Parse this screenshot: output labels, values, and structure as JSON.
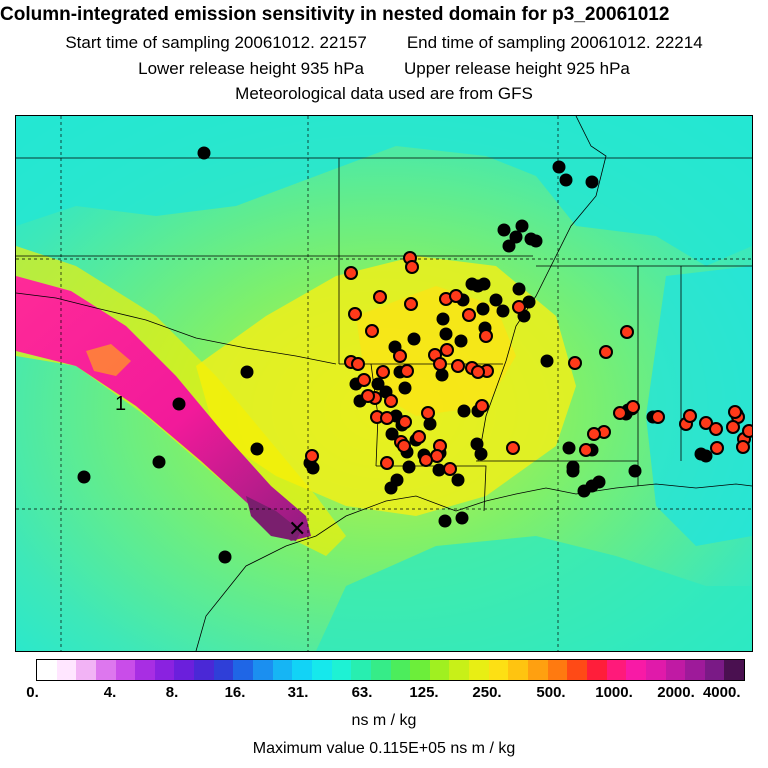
{
  "header": {
    "title": "Column-integrated emission sensitivity in nested domain for p3_20061012",
    "start_label": "Start time of sampling 20061012. 22157",
    "end_label": "End time of sampling 20061012. 22214",
    "lower_label": "Lower release height  935 hPa",
    "upper_label": "Upper release height  925 hPa",
    "met_label": "Meteorological data used are from GFS"
  },
  "map": {
    "plume_label": "1",
    "release_marker": "✕",
    "background_color": "#7df05a",
    "plume_color": "#ff1a9a",
    "plume_core_color": "#7a1f6e",
    "black_dot_color": "#000000",
    "red_dot_color": "#ff3a1a"
  },
  "colorbar": {
    "colors": [
      "#ffffff",
      "#ffe6ff",
      "#f2b3f5",
      "#dd77ee",
      "#c94de9",
      "#a82ee3",
      "#8a22e0",
      "#6b1fdc",
      "#4a28d6",
      "#2f3fd8",
      "#1f66e6",
      "#1b8ff0",
      "#16b5f4",
      "#12d3f6",
      "#16e8ec",
      "#1ef2d4",
      "#28eeb0",
      "#36ec88",
      "#4ced5c",
      "#6cee3a",
      "#a0f020",
      "#c8f018",
      "#e8ee14",
      "#fde014",
      "#ffc410",
      "#ffa010",
      "#ff7a10",
      "#ff4a16",
      "#ff1e3a",
      "#ff1a7a",
      "#f81aa6",
      "#e01aaa",
      "#c01aa4",
      "#9e1a9a",
      "#7a1a86",
      "#4a1050"
    ],
    "ticks": [
      "0.",
      "4.",
      "8.",
      "16.",
      "31.",
      "63.",
      "125.",
      "250.",
      "500.",
      "1000.",
      "2000.",
      "4000."
    ],
    "unit": "ns m / kg",
    "max_label": "Maximum value  0.115E+05 ns m / kg"
  }
}
